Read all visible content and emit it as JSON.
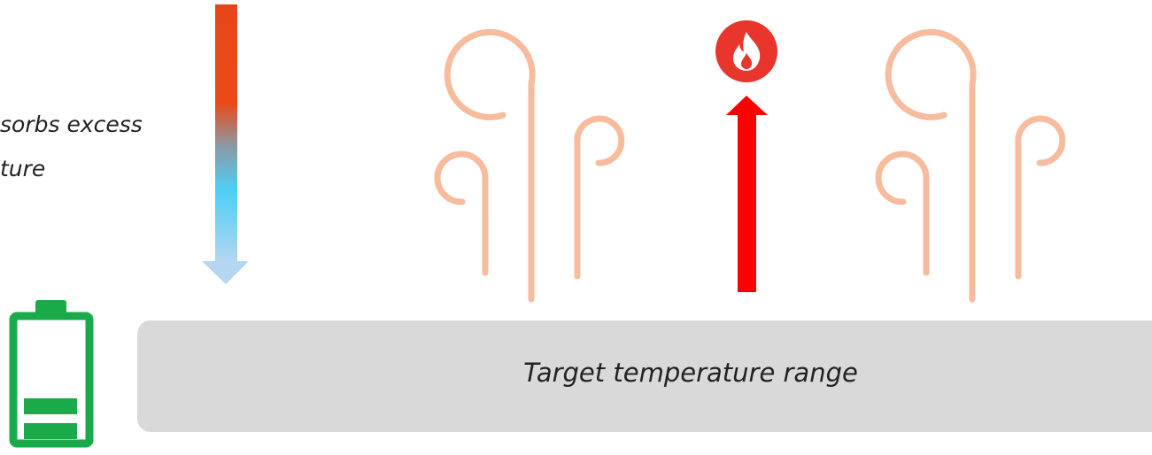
{
  "left_label": {
    "line1": "sorbs excess",
    "line2": "ture"
  },
  "range_bar": {
    "label": "Target temperature range"
  }
}
